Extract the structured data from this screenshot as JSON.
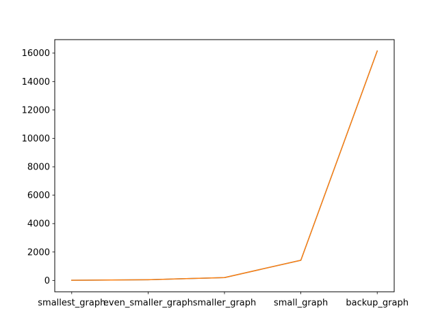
{
  "chart_data": {
    "type": "line",
    "title": "",
    "xlabel": "",
    "ylabel": "",
    "categories": [
      "smallest_graph",
      "even_smaller_graph",
      "smaller_graph",
      "small_graph",
      "backup_graph"
    ],
    "series": [
      {
        "values": [
          10,
          50,
          200,
          1420,
          16150
        ],
        "color": "#1f77b4"
      },
      {
        "values": [
          10,
          50,
          200,
          1420,
          16150
        ],
        "color": "#ff7f0e"
      }
    ],
    "ylim": [
      -800,
      16950
    ],
    "yticks": [
      0,
      2000,
      4000,
      6000,
      8000,
      10000,
      12000,
      14000,
      16000
    ],
    "grid": false,
    "legend": "none"
  }
}
